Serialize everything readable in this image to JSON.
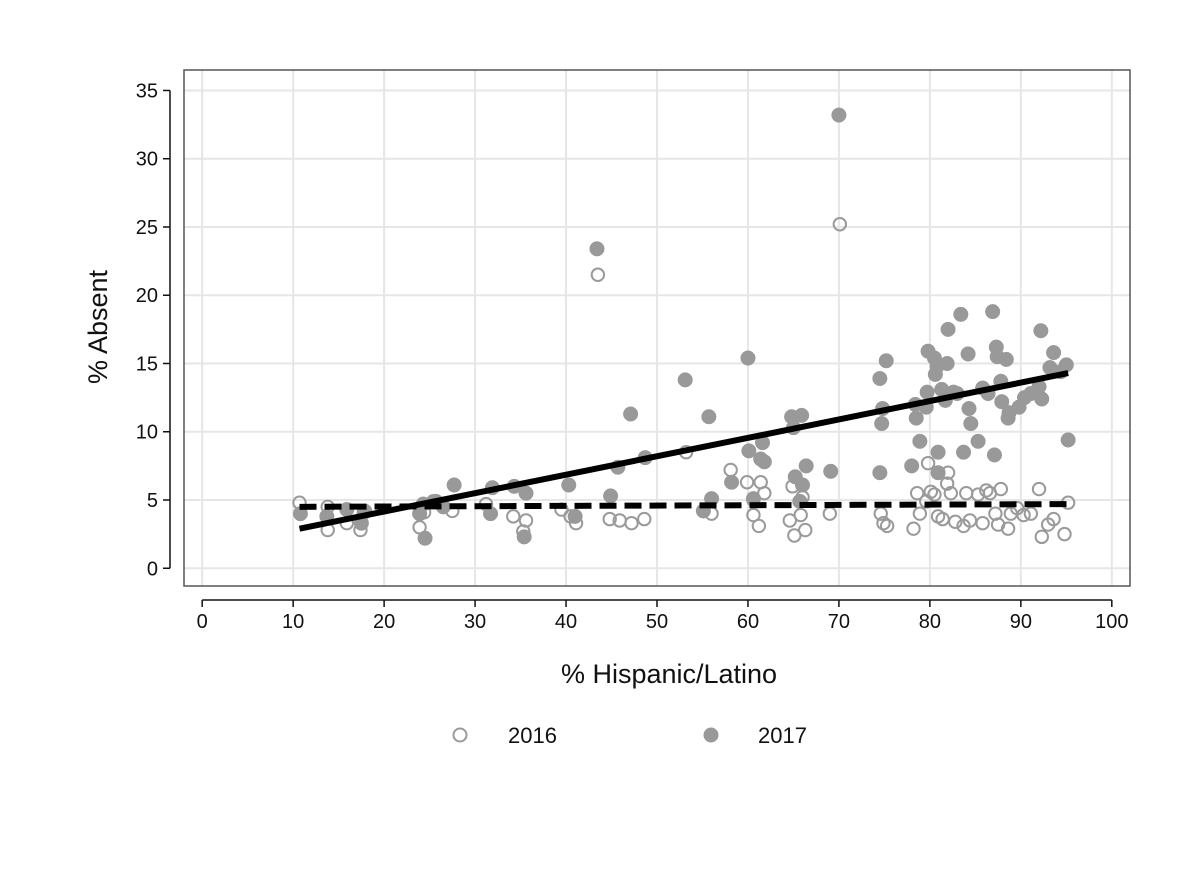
{
  "chart_data": {
    "type": "scatter",
    "title": "",
    "xlabel": "% Hispanic/Latino",
    "ylabel": "% Absent",
    "xlim": [
      -2,
      102
    ],
    "ylim": [
      -1.3,
      36.5
    ],
    "xticks": [
      0,
      10,
      20,
      30,
      40,
      50,
      60,
      70,
      80,
      90,
      100
    ],
    "yticks": [
      0,
      5,
      10,
      15,
      20,
      25,
      30,
      35
    ],
    "xtick_labels": [
      "0",
      "10",
      "20",
      "30",
      "40",
      "50",
      "60",
      "70",
      "80",
      "90",
      "100"
    ],
    "ytick_labels": [
      "0",
      "5",
      "10",
      "15",
      "20",
      "25",
      "30",
      "35"
    ],
    "grid": true,
    "legend_position": "bottom",
    "series": [
      {
        "name": "2016",
        "marker": "hollow-circle",
        "color": "#9a9a9a",
        "points": [
          [
            10.7,
            4.8
          ],
          [
            13.8,
            4.5
          ],
          [
            13.8,
            2.8
          ],
          [
            15.9,
            3.3
          ],
          [
            17.4,
            2.8
          ],
          [
            17.9,
            4.2
          ],
          [
            23.9,
            3.0
          ],
          [
            24.4,
            4.1
          ],
          [
            25.4,
            4.9
          ],
          [
            27.5,
            4.2
          ],
          [
            31.2,
            4.7
          ],
          [
            34.2,
            3.8
          ],
          [
            35.6,
            3.5
          ],
          [
            35.3,
            2.7
          ],
          [
            39.5,
            4.3
          ],
          [
            40.5,
            3.8
          ],
          [
            41.1,
            3.3
          ],
          [
            43.5,
            21.5
          ],
          [
            44.8,
            3.6
          ],
          [
            45.9,
            3.5
          ],
          [
            47.2,
            3.3
          ],
          [
            48.6,
            3.6
          ],
          [
            53.2,
            8.5
          ],
          [
            55.1,
            4.2
          ],
          [
            56.0,
            4.0
          ],
          [
            58.1,
            7.2
          ],
          [
            59.9,
            6.3
          ],
          [
            60.6,
            5.0
          ],
          [
            60.6,
            3.9
          ],
          [
            61.2,
            3.1
          ],
          [
            61.4,
            6.3
          ],
          [
            61.8,
            5.5
          ],
          [
            64.6,
            3.5
          ],
          [
            65.1,
            2.4
          ],
          [
            64.9,
            6.0
          ],
          [
            65.8,
            3.9
          ],
          [
            66.0,
            5.2
          ],
          [
            66.3,
            2.8
          ],
          [
            69.0,
            4.0
          ],
          [
            70.1,
            25.2
          ],
          [
            74.6,
            4.0
          ],
          [
            74.9,
            3.3
          ],
          [
            75.3,
            3.1
          ],
          [
            78.2,
            2.9
          ],
          [
            78.6,
            5.5
          ],
          [
            78.9,
            4.0
          ],
          [
            79.6,
            4.9
          ],
          [
            79.8,
            7.7
          ],
          [
            80.1,
            5.6
          ],
          [
            80.5,
            5.4
          ],
          [
            80.9,
            3.8
          ],
          [
            81.4,
            3.6
          ],
          [
            81.9,
            6.2
          ],
          [
            82.0,
            7.0
          ],
          [
            82.3,
            5.5
          ],
          [
            82.8,
            3.4
          ],
          [
            83.7,
            3.1
          ],
          [
            84.0,
            5.5
          ],
          [
            84.4,
            3.5
          ],
          [
            85.3,
            5.4
          ],
          [
            85.8,
            3.3
          ],
          [
            86.2,
            5.7
          ],
          [
            86.6,
            5.5
          ],
          [
            87.2,
            4.0
          ],
          [
            87.5,
            3.2
          ],
          [
            87.8,
            5.8
          ],
          [
            88.6,
            2.9
          ],
          [
            88.9,
            4.0
          ],
          [
            89.6,
            4.4
          ],
          [
            90.3,
            3.9
          ],
          [
            91.1,
            4.0
          ],
          [
            92.0,
            5.8
          ],
          [
            92.3,
            2.3
          ],
          [
            93.0,
            3.2
          ],
          [
            93.6,
            3.6
          ],
          [
            94.8,
            2.5
          ],
          [
            95.2,
            4.8
          ]
        ]
      },
      {
        "name": "2017",
        "marker": "filled-circle",
        "color": "#999999",
        "points": [
          [
            10.8,
            4.0
          ],
          [
            13.7,
            3.8
          ],
          [
            15.9,
            4.3
          ],
          [
            17.5,
            3.3
          ],
          [
            17.8,
            4.1
          ],
          [
            23.9,
            4.0
          ],
          [
            24.3,
            4.7
          ],
          [
            24.5,
            2.2
          ],
          [
            25.7,
            4.9
          ],
          [
            26.5,
            4.5
          ],
          [
            27.7,
            6.1
          ],
          [
            31.7,
            4.0
          ],
          [
            31.9,
            5.9
          ],
          [
            34.3,
            6.0
          ],
          [
            35.4,
            2.3
          ],
          [
            35.6,
            5.5
          ],
          [
            40.3,
            6.1
          ],
          [
            41.0,
            3.8
          ],
          [
            43.4,
            23.4
          ],
          [
            44.9,
            5.3
          ],
          [
            45.7,
            7.4
          ],
          [
            47.1,
            11.3
          ],
          [
            48.7,
            8.1
          ],
          [
            53.1,
            13.8
          ],
          [
            55.1,
            4.2
          ],
          [
            55.7,
            11.1
          ],
          [
            56.0,
            5.1
          ],
          [
            58.2,
            6.3
          ],
          [
            60.0,
            15.4
          ],
          [
            60.1,
            8.6
          ],
          [
            60.6,
            5.1
          ],
          [
            61.4,
            8.0
          ],
          [
            61.6,
            9.2
          ],
          [
            61.8,
            7.8
          ],
          [
            64.8,
            11.1
          ],
          [
            65.0,
            10.3
          ],
          [
            65.2,
            6.7
          ],
          [
            65.7,
            4.9
          ],
          [
            65.9,
            11.2
          ],
          [
            66.0,
            6.1
          ],
          [
            66.4,
            7.5
          ],
          [
            69.1,
            7.1
          ],
          [
            70.0,
            33.2
          ],
          [
            74.5,
            13.9
          ],
          [
            74.5,
            7.0
          ],
          [
            74.7,
            10.6
          ],
          [
            74.8,
            11.7
          ],
          [
            75.2,
            15.2
          ],
          [
            78.0,
            7.5
          ],
          [
            78.4,
            12.0
          ],
          [
            78.5,
            11.0
          ],
          [
            78.9,
            9.3
          ],
          [
            79.6,
            11.8
          ],
          [
            79.7,
            12.9
          ],
          [
            79.8,
            15.9
          ],
          [
            80.5,
            15.4
          ],
          [
            80.6,
            14.2
          ],
          [
            80.8,
            14.8
          ],
          [
            80.9,
            8.5
          ],
          [
            80.9,
            7.0
          ],
          [
            81.3,
            13.1
          ],
          [
            81.7,
            12.3
          ],
          [
            81.9,
            15.0
          ],
          [
            82.0,
            17.5
          ],
          [
            82.6,
            12.9
          ],
          [
            83.0,
            12.8
          ],
          [
            83.4,
            18.6
          ],
          [
            83.7,
            8.5
          ],
          [
            84.2,
            15.7
          ],
          [
            84.3,
            11.7
          ],
          [
            84.5,
            10.6
          ],
          [
            85.3,
            9.3
          ],
          [
            85.8,
            13.2
          ],
          [
            86.4,
            12.8
          ],
          [
            86.9,
            18.8
          ],
          [
            87.1,
            8.3
          ],
          [
            87.3,
            16.2
          ],
          [
            87.4,
            15.5
          ],
          [
            87.8,
            13.7
          ],
          [
            87.9,
            12.2
          ],
          [
            88.4,
            15.3
          ],
          [
            88.6,
            11.0
          ],
          [
            88.7,
            11.4
          ],
          [
            89.8,
            11.8
          ],
          [
            90.4,
            12.5
          ],
          [
            91.1,
            12.8
          ],
          [
            92.0,
            13.3
          ],
          [
            92.2,
            17.4
          ],
          [
            92.3,
            12.4
          ],
          [
            93.2,
            14.7
          ],
          [
            93.6,
            15.8
          ],
          [
            94.4,
            14.4
          ],
          [
            95.0,
            14.9
          ],
          [
            95.2,
            9.4
          ]
        ]
      }
    ],
    "fit_lines": [
      {
        "series": "2017",
        "style": "solid",
        "color": "#000000",
        "x": [
          10.7,
          95.2
        ],
        "y": [
          2.9,
          14.3
        ]
      },
      {
        "series": "2016",
        "style": "dashed",
        "color": "#000000",
        "x": [
          10.7,
          95.2
        ],
        "y": [
          4.5,
          4.7
        ]
      }
    ]
  }
}
